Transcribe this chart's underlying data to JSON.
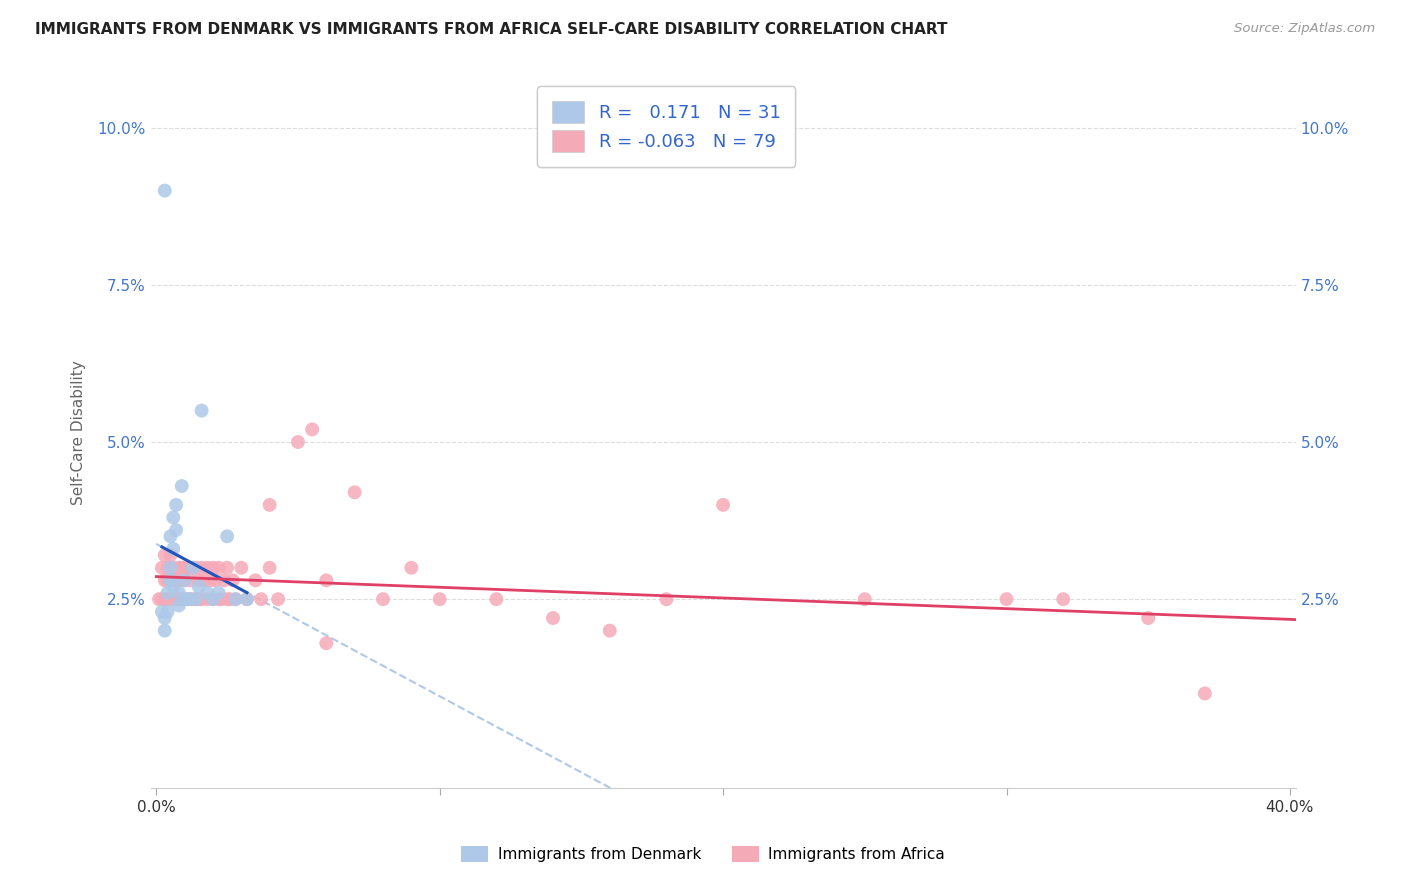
{
  "title": "IMMIGRANTS FROM DENMARK VS IMMIGRANTS FROM AFRICA SELF-CARE DISABILITY CORRELATION CHART",
  "source": "Source: ZipAtlas.com",
  "ylabel": "Self-Care Disability",
  "xlim": [
    -0.002,
    0.402
  ],
  "ylim": [
    -0.005,
    0.108
  ],
  "xtick_positions": [
    0.0,
    0.1,
    0.2,
    0.3,
    0.4
  ],
  "xtick_labels": [
    "0.0%",
    "",
    "",
    "",
    "40.0%"
  ],
  "ytick_positions": [
    0.025,
    0.05,
    0.075,
    0.1
  ],
  "ytick_labels": [
    "2.5%",
    "5.0%",
    "7.5%",
    "10.0%"
  ],
  "grid_color": "#dddddd",
  "background_color": "#ffffff",
  "denmark_color": "#adc8e8",
  "africa_color": "#f5aab8",
  "denmark_line_color": "#2255bb",
  "africa_line_color": "#e04065",
  "denmark_dashed_color": "#b0c8e8",
  "R_denmark": 0.171,
  "N_denmark": 31,
  "R_africa": -0.063,
  "N_africa": 79,
  "dk_x": [
    0.002,
    0.003,
    0.003,
    0.004,
    0.004,
    0.005,
    0.005,
    0.005,
    0.006,
    0.006,
    0.006,
    0.007,
    0.007,
    0.008,
    0.008,
    0.009,
    0.01,
    0.01,
    0.011,
    0.012,
    0.013,
    0.014,
    0.015,
    0.016,
    0.018,
    0.02,
    0.022,
    0.025,
    0.028,
    0.032,
    0.003
  ],
  "dk_y": [
    0.023,
    0.022,
    0.02,
    0.026,
    0.023,
    0.028,
    0.03,
    0.035,
    0.027,
    0.033,
    0.038,
    0.04,
    0.036,
    0.026,
    0.024,
    0.043,
    0.028,
    0.025,
    0.025,
    0.025,
    0.03,
    0.025,
    0.027,
    0.055,
    0.026,
    0.025,
    0.026,
    0.035,
    0.025,
    0.025,
    0.09
  ],
  "af_x": [
    0.001,
    0.002,
    0.002,
    0.003,
    0.003,
    0.003,
    0.004,
    0.004,
    0.004,
    0.005,
    0.005,
    0.005,
    0.005,
    0.006,
    0.006,
    0.006,
    0.007,
    0.007,
    0.008,
    0.008,
    0.008,
    0.009,
    0.009,
    0.01,
    0.01,
    0.01,
    0.011,
    0.011,
    0.012,
    0.012,
    0.013,
    0.013,
    0.014,
    0.014,
    0.015,
    0.015,
    0.016,
    0.016,
    0.017,
    0.018,
    0.018,
    0.019,
    0.02,
    0.02,
    0.021,
    0.022,
    0.022,
    0.023,
    0.024,
    0.025,
    0.025,
    0.026,
    0.027,
    0.028,
    0.03,
    0.032,
    0.035,
    0.037,
    0.04,
    0.043,
    0.05,
    0.055,
    0.06,
    0.07,
    0.08,
    0.09,
    0.1,
    0.12,
    0.14,
    0.16,
    0.18,
    0.2,
    0.25,
    0.3,
    0.32,
    0.35,
    0.37,
    0.04,
    0.06
  ],
  "af_y": [
    0.025,
    0.03,
    0.025,
    0.028,
    0.032,
    0.025,
    0.03,
    0.025,
    0.028,
    0.03,
    0.025,
    0.028,
    0.032,
    0.025,
    0.028,
    0.03,
    0.025,
    0.028,
    0.025,
    0.03,
    0.028,
    0.025,
    0.03,
    0.025,
    0.03,
    0.028,
    0.025,
    0.03,
    0.025,
    0.028,
    0.03,
    0.025,
    0.03,
    0.025,
    0.028,
    0.025,
    0.03,
    0.025,
    0.028,
    0.025,
    0.03,
    0.028,
    0.025,
    0.03,
    0.028,
    0.025,
    0.03,
    0.025,
    0.028,
    0.025,
    0.03,
    0.025,
    0.028,
    0.025,
    0.03,
    0.025,
    0.028,
    0.025,
    0.03,
    0.025,
    0.05,
    0.052,
    0.028,
    0.042,
    0.025,
    0.03,
    0.025,
    0.025,
    0.022,
    0.02,
    0.025,
    0.04,
    0.025,
    0.025,
    0.025,
    0.022,
    0.01,
    0.04,
    0.018
  ],
  "dk_line_x": [
    0.0,
    0.035
  ],
  "dk_line_y_start": 0.0245,
  "dk_line_slope": 0.18,
  "af_line_x": [
    0.0,
    0.38
  ],
  "af_line_y_start": 0.027,
  "af_line_slope": -0.012
}
